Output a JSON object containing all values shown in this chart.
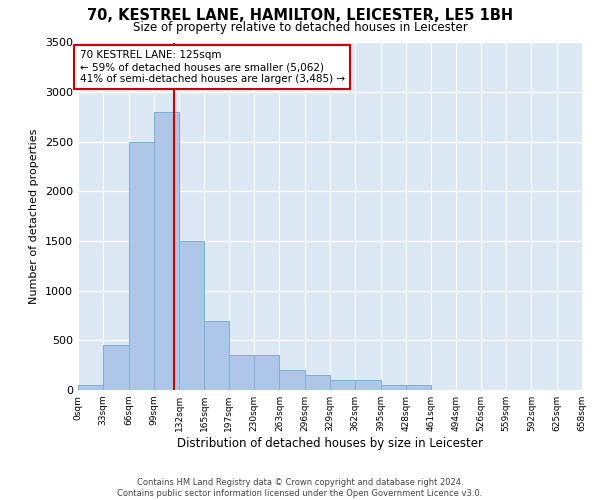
{
  "title_line1": "70, KESTREL LANE, HAMILTON, LEICESTER, LE5 1BH",
  "title_line2": "Size of property relative to detached houses in Leicester",
  "xlabel": "Distribution of detached houses by size in Leicester",
  "ylabel": "Number of detached properties",
  "property_label": "70 KESTREL LANE: 125sqm",
  "annotation_line1": "← 59% of detached houses are smaller (5,062)",
  "annotation_line2": "41% of semi-detached houses are larger (3,485) →",
  "bin_edges": [
    0,
    33,
    66,
    99,
    132,
    165,
    197,
    230,
    263,
    296,
    329,
    362,
    395,
    428,
    461,
    494,
    526,
    559,
    592,
    625,
    658
  ],
  "bin_counts": [
    50,
    450,
    2500,
    2800,
    1500,
    700,
    350,
    350,
    200,
    150,
    100,
    100,
    50,
    50,
    0,
    0,
    0,
    0,
    0,
    0
  ],
  "bar_color": "#aec6e8",
  "bar_edge_color": "#7bafd4",
  "vline_color": "#cc0000",
  "vline_x": 125,
  "annotation_box_edgecolor": "#cc0000",
  "axes_facecolor": "#dde8f5",
  "fig_facecolor": "#ffffff",
  "grid_color": "#ffffff",
  "ylim": [
    0,
    3500
  ],
  "yticks": [
    0,
    500,
    1000,
    1500,
    2000,
    2500,
    3000,
    3500
  ],
  "footer_line1": "Contains HM Land Registry data © Crown copyright and database right 2024.",
  "footer_line2": "Contains public sector information licensed under the Open Government Licence v3.0."
}
